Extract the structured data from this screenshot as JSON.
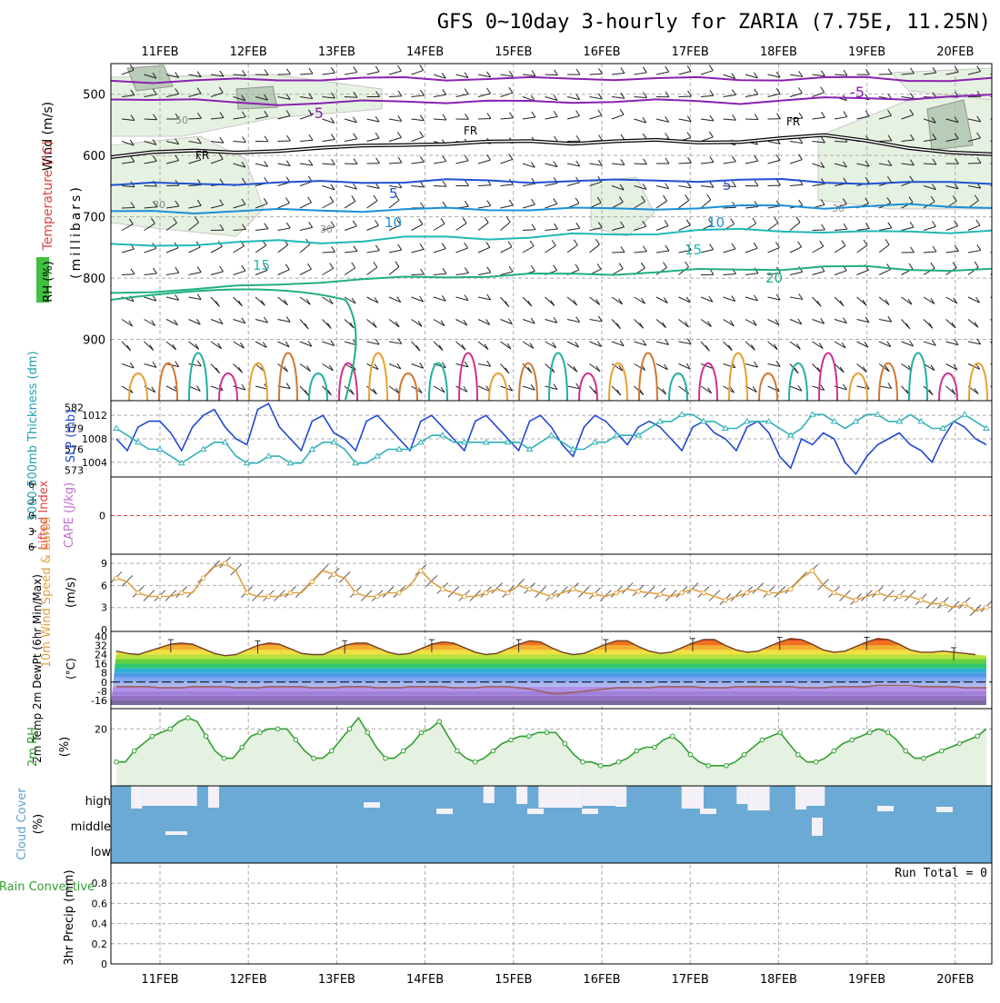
{
  "title": "GFS 0~10day 3-hourly for ZARIA (7.75E, 11.25N)",
  "date_labels": [
    "11FEB",
    "12FEB",
    "13FEB",
    "14FEB",
    "15FEB",
    "16FEB",
    "17FEB",
    "18FEB",
    "19FEB",
    "20FEB"
  ],
  "colors": {
    "frame": "#000000",
    "grid": "#aaaaaa",
    "rh_fill": "#e6f2e1",
    "cloud": "#6aaad5",
    "temp_orange": "#e8a030"
  },
  "chart_data": [
    {
      "id": "upper",
      "type": "contour",
      "ylabel_main": "(millibars)",
      "ylabel_wind": "Wind (m/s)",
      "ylabel_temp": "Temperature (°C)",
      "ylabel_rh": "RH (%)",
      "yticks": [
        500,
        600,
        700,
        800,
        900
      ],
      "ylim": [
        1000,
        450
      ],
      "isotherms": [
        {
          "label": "-5",
          "color": "#8a20b0",
          "levels": [
            478,
            479,
            478,
            477,
            476,
            475,
            475,
            474,
            475,
            474,
            475,
            475,
            474,
            474,
            475,
            476,
            475,
            474,
            474,
            476,
            477,
            476
          ]
        },
        {
          "label": "-5",
          "color": "#8a20b0",
          "levels": [
            506,
            508,
            511,
            514,
            515,
            515,
            513,
            511,
            512,
            512,
            513,
            512,
            511,
            511,
            512,
            513,
            510,
            508,
            506,
            506,
            505,
            503
          ]
        },
        {
          "label": "FR",
          "color": "#000000",
          "levels": [
            600,
            596,
            594,
            593,
            591,
            590,
            585,
            580,
            581,
            580,
            576,
            578,
            578,
            577,
            577,
            576,
            574,
            568,
            573,
            587,
            598,
            598
          ]
        },
        {
          "label": "5",
          "color": "#2050d0",
          "levels": [
            648,
            647,
            646,
            645,
            645,
            644,
            643,
            642,
            641,
            642,
            642,
            641,
            642,
            641,
            640,
            640,
            641,
            643,
            644,
            645,
            645,
            644
          ]
        },
        {
          "label": "10",
          "color": "#1a90d8",
          "levels": [
            693,
            692,
            692,
            690,
            690,
            690,
            689,
            688,
            688,
            688,
            687,
            687,
            688,
            686,
            685,
            684,
            682,
            684,
            683,
            682,
            683,
            683
          ]
        },
        {
          "label": "15",
          "color": "#20b8b8",
          "levels": [
            747,
            746,
            744,
            743,
            740,
            741,
            739,
            735,
            733,
            734,
            734,
            730,
            728,
            726,
            723,
            722,
            722,
            724,
            726,
            725,
            724,
            722
          ]
        },
        {
          "label": "20",
          "color": "#20b080",
          "levels": [
            825,
            820,
            818,
            815,
            810,
            805,
            803,
            800,
            797,
            796,
            795,
            794,
            792,
            790,
            788,
            786,
            784,
            782,
            783,
            785,
            786,
            787
          ]
        }
      ],
      "labels": {
        "minus5_upper": "-5",
        "minus5_lower": "-5",
        "fr": "FR",
        "five": "5",
        "ten": "10",
        "fifteen": "15",
        "twenty": "20",
        "rh50": "50",
        "rh30": "30"
      }
    },
    {
      "id": "slp",
      "type": "line",
      "ylabel_left": "1000-500mb Thickness (dm)",
      "ylabel_right": "SLP (mb)",
      "left_ticks": [
        582,
        579,
        576,
        573
      ],
      "right_ticks": [
        1012,
        1008,
        1004
      ],
      "slp_series": {
        "name": "SLP",
        "color": "#2048d0",
        "values": [
          1008,
          1006,
          1010,
          1011,
          1011,
          1009,
          1006,
          1010,
          1012,
          1013,
          1010,
          1008,
          1007,
          1013,
          1014,
          1010,
          1008,
          1006,
          1011,
          1012,
          1009,
          1008,
          1006,
          1011,
          1012,
          1010,
          1008,
          1006,
          1011,
          1012,
          1010,
          1008,
          1006,
          1011,
          1012,
          1010,
          1008,
          1006,
          1011,
          1012,
          1010,
          1007,
          1005,
          1010,
          1012,
          1011,
          1009,
          1007,
          1010,
          1011,
          1010,
          1008,
          1006,
          1010,
          1011,
          1009,
          1008,
          1006,
          1010,
          1011,
          1009,
          1005,
          1003,
          1008,
          1007,
          1009,
          1008,
          1004,
          1002,
          1005,
          1007,
          1008,
          1009,
          1007,
          1006,
          1004,
          1008,
          1011,
          1010,
          1008,
          1007
        ]
      },
      "thickness_series": {
        "name": "Thickness",
        "color": "#30b0b8",
        "values": [
          579,
          578,
          577,
          576,
          576,
          575,
          574,
          575,
          576,
          577,
          577,
          575,
          574,
          574,
          575,
          575,
          574,
          574,
          576,
          577,
          577,
          576,
          574,
          574,
          575,
          576,
          576,
          576,
          577,
          578,
          578,
          577,
          577,
          577,
          577,
          577,
          577,
          577,
          576,
          577,
          578,
          577,
          576,
          576,
          577,
          577,
          578,
          578,
          578,
          579,
          580,
          580,
          581,
          581,
          580,
          580,
          579,
          579,
          580,
          580,
          580,
          579,
          578,
          579,
          581,
          581,
          580,
          579,
          580,
          581,
          581,
          580,
          580,
          581,
          580,
          579,
          579,
          580,
          581,
          580,
          579
        ]
      }
    },
    {
      "id": "cape",
      "type": "line",
      "ylabel_left": "Lifted Index",
      "ylabel_right": "CAPE (J/kg)",
      "ticks": [
        6,
        3,
        0,
        3,
        6
      ],
      "zero_color": "#e04040"
    },
    {
      "id": "wind",
      "type": "line",
      "ylabel_left": "10m Wind Speed & Barbs",
      "ylabel_right": "(m/s)",
      "ticks": [
        9,
        6,
        3,
        0
      ],
      "ylim": [
        0,
        10
      ],
      "series": {
        "name": "Speed",
        "color": "#e0a040",
        "values": [
          7,
          6.5,
          5,
          4.5,
          4.5,
          4.5,
          5,
          5,
          7,
          8.5,
          9,
          8,
          5,
          4.5,
          4.5,
          4.5,
          5,
          5,
          6.5,
          8,
          7.5,
          7,
          5,
          4.5,
          4.5,
          5,
          5,
          6,
          8,
          6.5,
          5.5,
          5,
          4.5,
          4.5,
          5,
          5.5,
          5,
          6,
          5.5,
          5,
          4.5,
          5,
          5.5,
          5,
          4.8,
          4.5,
          5,
          5.5,
          5.2,
          5,
          4.8,
          4.5,
          5,
          5.5,
          5,
          4.5,
          4,
          4.5,
          5,
          5.5,
          5,
          5,
          5.5,
          7,
          8,
          6,
          5,
          4.5,
          4,
          4.5,
          5,
          4.5,
          4.5,
          4.5,
          4,
          3.5,
          3.5,
          3,
          3.5,
          2.5,
          3
        ]
      }
    },
    {
      "id": "temp",
      "type": "area",
      "ylabel_left": "2m Temp 2m DewPt (6hr Min/Max)",
      "ylabel_right": "(°C)",
      "ticks": [
        40,
        32,
        24,
        16,
        8,
        0,
        -8,
        -16
      ],
      "temp_values": [
        27,
        25,
        24,
        27,
        30,
        33,
        34,
        33,
        29,
        25,
        23,
        24,
        28,
        32,
        34,
        33,
        29,
        25,
        24,
        24,
        28,
        32,
        34,
        34,
        30,
        26,
        24,
        25,
        29,
        33,
        35,
        34,
        30,
        26,
        24,
        25,
        29,
        33,
        36,
        35,
        30,
        26,
        24,
        25,
        29,
        33,
        36,
        36,
        31,
        27,
        25,
        26,
        30,
        34,
        37,
        37,
        32,
        28,
        26,
        27,
        31,
        35,
        38,
        37,
        33,
        28,
        26,
        27,
        31,
        35,
        38,
        37,
        33,
        28,
        26,
        26,
        27,
        26,
        25,
        24,
        23
      ],
      "dew_values": [
        -4,
        -4,
        -4,
        -4,
        -5,
        -5,
        -5,
        -4,
        -4,
        -4,
        -4,
        -5,
        -5,
        -5,
        -4,
        -4,
        -4,
        -4,
        -5,
        -5,
        -5,
        -4,
        -4,
        -4,
        -5,
        -5,
        -5,
        -4,
        -4,
        -4,
        -4,
        -5,
        -5,
        -5,
        -4,
        -4,
        -4,
        -5,
        -6,
        -8,
        -10,
        -10,
        -9,
        -8,
        -7,
        -6,
        -5,
        -5,
        -5,
        -5,
        -4,
        -4,
        -4,
        -4,
        -5,
        -5,
        -5,
        -4,
        -4,
        -4,
        -4,
        -4,
        -4,
        -5,
        -5,
        -5,
        -4,
        -4,
        -4,
        -4,
        -3,
        -3,
        -3,
        -3,
        -4,
        -4,
        -4,
        -4,
        -5,
        -5,
        -5
      ]
    },
    {
      "id": "rh2m",
      "type": "area",
      "ylabel_left": "2m RH",
      "ylabel_right": "(%)",
      "ticks": [
        20
      ],
      "ylim": [
        5,
        25
      ],
      "series": {
        "name": "RH",
        "color": "#30a030",
        "values": [
          11,
          11,
          14,
          16,
          18,
          19,
          20,
          22,
          23,
          22,
          18,
          14,
          12,
          12,
          15,
          18,
          19,
          20,
          20,
          20,
          17,
          14,
          12,
          12,
          14,
          17,
          20,
          23,
          19,
          15,
          12,
          12,
          14,
          16,
          19,
          20,
          22,
          18,
          14,
          12,
          11,
          12,
          14,
          16,
          17,
          18,
          18,
          19,
          19,
          19,
          16,
          13,
          11,
          11,
          10,
          10,
          11,
          12,
          14,
          15,
          15,
          17,
          18,
          16,
          13,
          11,
          10,
          10,
          10,
          11,
          13,
          15,
          17,
          18,
          19,
          16,
          13,
          11,
          11,
          12,
          14,
          16,
          17,
          18,
          19,
          20,
          19,
          17,
          14,
          12,
          12,
          13,
          14,
          15,
          16,
          17,
          18,
          20
        ]
      }
    },
    {
      "id": "cloud",
      "type": "bar",
      "ylabel_left": "Cloud Cover",
      "ylabel_right": "(%)",
      "levels": [
        "high",
        "middle",
        "low"
      ],
      "high_values": [
        10,
        90,
        95,
        100,
        100,
        100,
        100,
        100,
        100,
        55,
        30,
        0,
        0,
        0,
        0,
        0,
        0,
        0,
        0,
        0,
        0,
        0,
        0,
        0,
        0,
        0,
        0,
        0,
        0,
        0,
        0,
        0,
        0,
        0,
        0,
        0,
        40,
        0,
        100,
        80,
        70,
        90,
        100,
        90,
        100,
        100,
        100,
        100,
        100,
        100,
        100,
        60,
        60,
        30,
        0,
        0,
        30,
        0,
        30,
        30,
        30,
        0,
        100,
        60,
        100,
        0,
        0,
        0,
        0,
        0,
        0,
        0,
        0,
        0,
        0,
        0,
        0,
        0,
        0,
        0,
        0,
        0,
        0,
        0,
        0,
        0,
        0,
        0,
        0,
        0,
        0,
        0,
        0,
        0,
        0,
        0,
        0,
        0,
        0,
        0,
        0,
        0,
        0,
        0,
        0,
        0,
        0,
        0,
        0,
        0,
        0,
        0,
        0,
        0,
        0,
        0,
        0,
        0,
        0,
        0,
        0,
        0,
        0,
        0,
        0,
        0,
        0,
        0,
        0,
        0,
        0,
        0,
        0,
        0,
        0,
        0,
        0,
        0,
        0,
        0,
        0,
        0,
        0,
        0,
        0,
        0,
        0,
        0,
        0,
        0,
        0,
        0,
        0,
        0,
        0,
        0,
        0,
        0,
        0,
        0,
        0,
        0,
        0,
        0,
        0,
        0,
        0
      ]
    },
    {
      "id": "precip",
      "type": "bar",
      "ylabel_left": "Total / Rain Convective",
      "ylabel_right": "3hr Precip (mm)",
      "ticks": [
        "0.8",
        "0.6",
        "0.4",
        "0.2",
        "0"
      ],
      "run_total": "Run Total = 0"
    }
  ]
}
